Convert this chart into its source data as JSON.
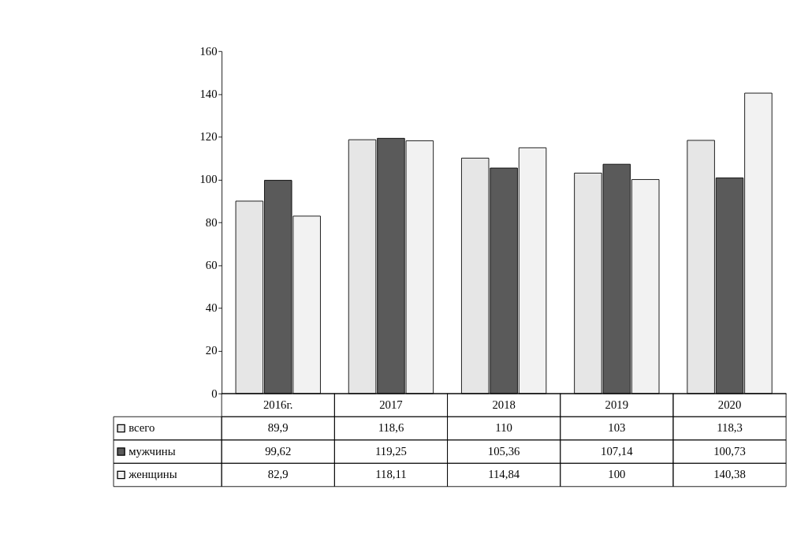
{
  "chart_data": {
    "type": "bar",
    "categories": [
      "2016г.",
      "2017",
      "2018",
      "2019",
      "2020"
    ],
    "series": [
      {
        "name": "всего",
        "color": "#e6e6e6",
        "values": [
          89.9,
          118.6,
          110,
          103,
          118.3
        ],
        "value_labels": [
          "89,9",
          "118,6",
          "110",
          "103",
          "118,3"
        ]
      },
      {
        "name": "мужчины",
        "color": "#5a5a5a",
        "values": [
          99.62,
          119.25,
          105.36,
          107.14,
          100.73
        ],
        "value_labels": [
          "99,62",
          "119,25",
          "105,36",
          "107,14",
          "100,73"
        ]
      },
      {
        "name": "женщины",
        "color": "#f2f2f2",
        "values": [
          82.9,
          118.11,
          114.84,
          100,
          140.38
        ],
        "value_labels": [
          "82,9",
          "118,11",
          "114,84",
          "100",
          "140,38"
        ]
      }
    ],
    "ylim": [
      0,
      160
    ],
    "yticks": [
      0,
      20,
      40,
      60,
      80,
      100,
      120,
      140,
      160
    ],
    "grid": false,
    "legend": "bottom left"
  }
}
